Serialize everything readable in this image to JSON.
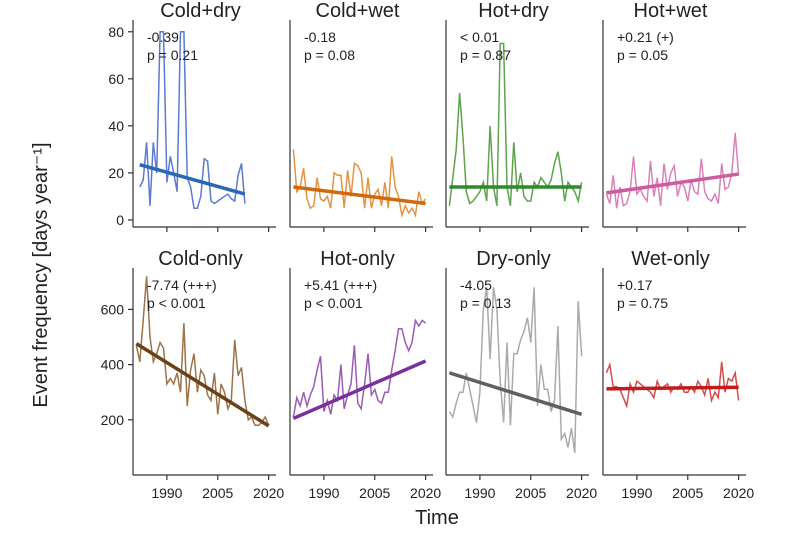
{
  "chart_data": {
    "type": "line",
    "xlabel": "Time",
    "ylabel": "Event frequency [days year⁻¹]",
    "xticks": [
      1990,
      2005,
      2020
    ],
    "xlim": [
      1980,
      2021
    ],
    "rows": [
      {
        "ylim": [
          -3,
          85
        ],
        "yticks": [
          0,
          20,
          40,
          60,
          80
        ]
      },
      {
        "ylim": [
          0,
          750
        ],
        "yticks": [
          200,
          400,
          600
        ]
      }
    ],
    "panels": [
      {
        "title": "Cold+dry",
        "trend": "-0.39",
        "p": "p = 0.21",
        "row": 0,
        "color": "#5b7bd0",
        "trend_color": "#2868b4",
        "start_year": 1982,
        "values": [
          14,
          17,
          33,
          6,
          33,
          20,
          80,
          80,
          16,
          27,
          20,
          12,
          80,
          80,
          18,
          14,
          5,
          5,
          10,
          26,
          25,
          8,
          7,
          8,
          9,
          10,
          11,
          9,
          8,
          19,
          24,
          7
        ],
        "trend_line": [
          23.5,
          11
        ]
      },
      {
        "title": "Cold+wet",
        "trend": "-0.18",
        "p": "p = 0.08",
        "row": 0,
        "color": "#e39342",
        "trend_color": "#d0680c",
        "start_year": 1981,
        "values": [
          30,
          12,
          14,
          22,
          9,
          5,
          6,
          18,
          9,
          8,
          10,
          5,
          20,
          19,
          19,
          5,
          21,
          10,
          24,
          23,
          20,
          5,
          18,
          5,
          11,
          13,
          6,
          16,
          5,
          27,
          14,
          10,
          2,
          6,
          3,
          5,
          2,
          12,
          7,
          9
        ],
        "trend_line": [
          14,
          7
        ]
      },
      {
        "title": "Hot+dry",
        "trend": "< 0.01",
        "p": "p = 0.87",
        "row": 0,
        "color": "#5ea34e",
        "trend_color": "#2f8a2f",
        "start_year": 1981,
        "values": [
          6,
          18,
          30,
          54,
          35,
          12,
          7,
          8,
          10,
          12,
          16,
          8,
          40,
          14,
          6,
          75,
          75,
          14,
          6,
          33,
          12,
          20,
          10,
          8,
          8,
          16,
          14,
          18,
          16,
          14,
          17,
          24,
          29,
          20,
          8,
          16,
          14,
          12,
          8,
          16
        ],
        "trend_line": [
          14,
          14
        ]
      },
      {
        "title": "Hot+wet",
        "trend": "+0.21 (+)",
        "p": "p = 0.05",
        "row": 0,
        "color": "#da82b8",
        "trend_color": "#cc5c9f",
        "start_year": 1981,
        "values": [
          11,
          7,
          19,
          5,
          14,
          6,
          7,
          12,
          27,
          11,
          13,
          10,
          8,
          25,
          10,
          18,
          6,
          24,
          13,
          20,
          23,
          10,
          16,
          14,
          8,
          17,
          12,
          11,
          26,
          12,
          9,
          8,
          11,
          7,
          24,
          13,
          14,
          20,
          37,
          19
        ],
        "trend_line": [
          11.5,
          19.5
        ]
      },
      {
        "title": "Cold-only",
        "trend": "-7.74 (+++)",
        "p": "p < 0.001",
        "row": 1,
        "color": "#9c7448",
        "trend_color": "#6a4219",
        "start_year": 1981,
        "values": [
          470,
          410,
          560,
          720,
          500,
          410,
          440,
          480,
          460,
          330,
          350,
          330,
          370,
          300,
          550,
          250,
          380,
          440,
          300,
          380,
          360,
          290,
          270,
          370,
          220,
          330,
          300,
          240,
          270,
          490,
          360,
          390,
          270,
          200,
          210,
          180,
          180,
          190,
          210,
          180
        ],
        "trend_line": [
          476,
          178
        ]
      },
      {
        "title": "Hot-only",
        "trend": "+5.41 (+++)",
        "p": "p < 0.001",
        "row": 1,
        "color": "#9b5cb6",
        "trend_color": "#7a2e9f",
        "start_year": 1981,
        "values": [
          210,
          280,
          250,
          300,
          250,
          290,
          320,
          380,
          430,
          230,
          270,
          220,
          290,
          270,
          400,
          240,
          290,
          330,
          470,
          260,
          240,
          330,
          440,
          290,
          310,
          270,
          260,
          300,
          300,
          380,
          450,
          530,
          530,
          480,
          450,
          480,
          560,
          540,
          560,
          550
        ],
        "trend_line": [
          205,
          413
        ]
      },
      {
        "title": "Dry-only",
        "trend": "-4.05",
        "p": "p = 0.13",
        "row": 1,
        "color": "#aaaaaa",
        "trend_color": "#606060",
        "start_year": 1981,
        "values": [
          230,
          210,
          260,
          300,
          300,
          370,
          310,
          250,
          190,
          300,
          600,
          680,
          420,
          680,
          600,
          340,
          190,
          480,
          180,
          440,
          440,
          490,
          520,
          570,
          480,
          680,
          250,
          400,
          310,
          310,
          230,
          270,
          540,
          130,
          150,
          100,
          170,
          80,
          630,
          430
        ],
        "trend_line": [
          370,
          220
        ]
      },
      {
        "title": "Wet-only",
        "trend": "+0.17",
        "p": "p = 0.75",
        "row": 1,
        "color": "#d44c4c",
        "trend_color": "#c01e1e",
        "start_year": 1981,
        "values": [
          370,
          400,
          320,
          320,
          310,
          280,
          250,
          330,
          300,
          340,
          330,
          320,
          310,
          300,
          280,
          340,
          310,
          320,
          330,
          300,
          320,
          310,
          330,
          300,
          300,
          320,
          300,
          340,
          320,
          290,
          350,
          270,
          300,
          280,
          410,
          300,
          350,
          340,
          370,
          270
        ],
        "trend_line": [
          312,
          318
        ]
      }
    ]
  }
}
